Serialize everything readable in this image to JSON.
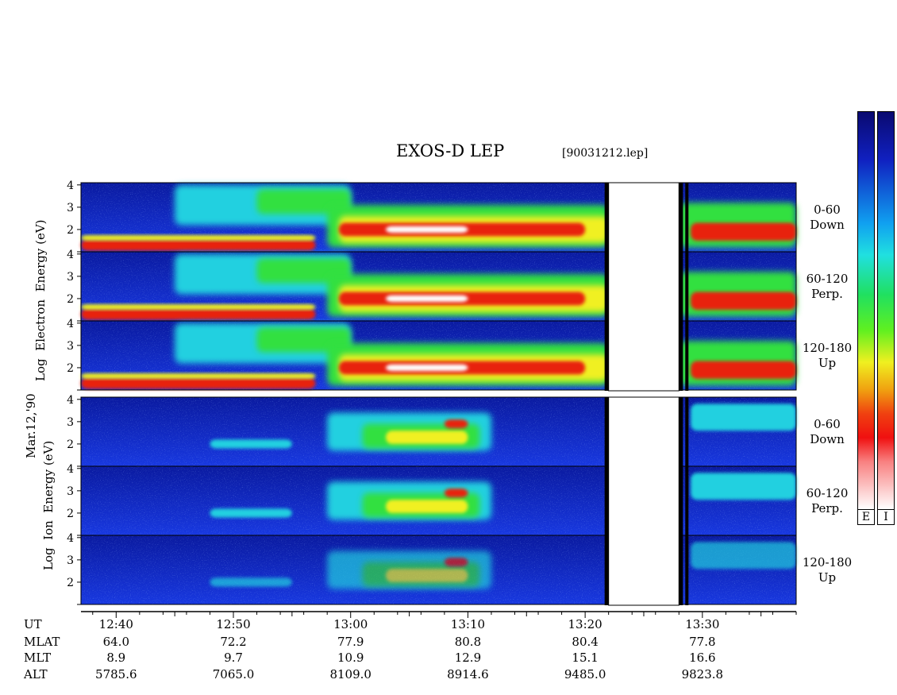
{
  "title": "EXOS-D LEP",
  "file_label": "[90031212.lep]",
  "date_label": "Mar.12,'90",
  "electron_axis_label": [
    "Log",
    "Electron",
    "Energy"
  ],
  "ion_axis_label": [
    "Log",
    "Ion",
    "Energy",
    "(eV)"
  ],
  "electron_unit_label": "(eV)",
  "colorbar_labels": [
    "E",
    "I"
  ],
  "colors": {
    "background_blue": "#1030d0",
    "dark_blue": "#0a1a90",
    "cyan": "#20d0e0",
    "green": "#30e040",
    "yellow": "#f0f020",
    "red": "#e82010",
    "white": "#ffffff"
  },
  "chart_data": {
    "type": "heatmap",
    "x_unit": "UT",
    "x_range": [
      "12:37",
      "13:38"
    ],
    "y_unit": "Log Energy (eV)",
    "y_range": [
      1,
      4.1
    ],
    "y_ticks": [
      "4",
      "3",
      "2"
    ],
    "data_gaps": [
      [
        "13:22",
        "13:28"
      ]
    ],
    "panels": [
      {
        "species": "Electron",
        "pitch_angle": "0-60",
        "direction": "Down"
      },
      {
        "species": "Electron",
        "pitch_angle": "60-120",
        "direction": "Perp."
      },
      {
        "species": "Electron",
        "pitch_angle": "120-180",
        "direction": "Up"
      },
      {
        "species": "Ion",
        "pitch_angle": "0-60",
        "direction": "Down"
      },
      {
        "species": "Ion",
        "pitch_angle": "60-120",
        "direction": "Perp."
      },
      {
        "species": "Ion",
        "pitch_angle": "120-180",
        "direction": "Up"
      }
    ],
    "ephemeris": {
      "rows": [
        "UT",
        "MLAT",
        "MLT",
        "ALT"
      ],
      "columns": [
        {
          "UT": "12:40",
          "MLAT": "64.0",
          "MLT": "8.9",
          "ALT": "5785.6"
        },
        {
          "UT": "12:50",
          "MLAT": "72.2",
          "MLT": "9.7",
          "ALT": "7065.0"
        },
        {
          "UT": "13:00",
          "MLAT": "77.9",
          "MLT": "10.9",
          "ALT": "8109.0"
        },
        {
          "UT": "13:10",
          "MLAT": "80.8",
          "MLT": "12.9",
          "ALT": "8914.6"
        },
        {
          "UT": "13:20",
          "MLAT": "80.4",
          "MLT": "15.1",
          "ALT": "9485.0"
        },
        {
          "UT": "13:30",
          "MLAT": "77.8",
          "MLT": "16.6",
          "ALT": "9823.8"
        }
      ]
    }
  }
}
